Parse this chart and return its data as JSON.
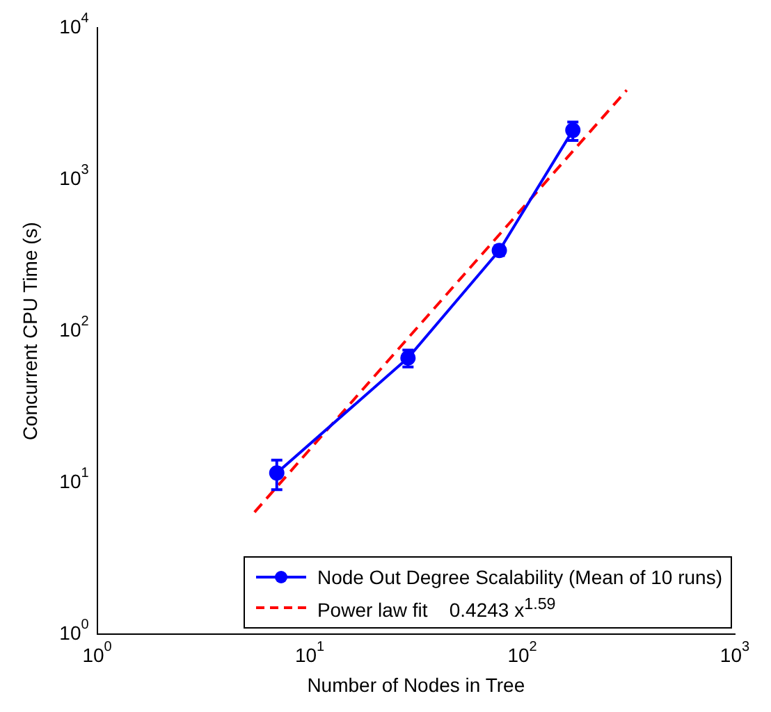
{
  "chart_data": {
    "type": "line",
    "xlabel": "Number of Nodes in Tree",
    "ylabel": "Concurrent CPU Time (s)",
    "log": "xy",
    "xlim": [
      1,
      1000
    ],
    "ylim": [
      1,
      10000
    ],
    "xticks": [
      {
        "value": 1,
        "label": "10$^{0}$"
      },
      {
        "value": 10,
        "label": "10$^{1}$"
      },
      {
        "value": 100,
        "label": "10$^{2}$"
      },
      {
        "value": 1000,
        "label": "10$^{3}$"
      }
    ],
    "yticks": [
      {
        "value": 1,
        "label": "10$^{0}$"
      },
      {
        "value": 10,
        "label": "10$^{1}$"
      },
      {
        "value": 100,
        "label": "10$^{2}$"
      },
      {
        "value": 1000,
        "label": "10$^{3}$"
      },
      {
        "value": 10000,
        "label": "10$^{4}$"
      }
    ],
    "grid": false,
    "legend": "bottom right",
    "series": [
      {
        "name": "Node Out Degree Scalability (Mean of 10 runs)",
        "color": "#0000ff",
        "marker": "circle",
        "line_style": "solid",
        "x": [
          7,
          29,
          78,
          173
        ],
        "values": [
          11.6,
          66.5,
          340,
          2110
        ],
        "errors": [
          [
            9,
            14.1
          ],
          [
            58,
            75
          ],
          [
            315,
            365
          ],
          [
            1810,
            2390
          ]
        ]
      },
      {
        "name": "Power law fit    0.4243 x$^{1.59}$",
        "color": "#ff0000",
        "marker": "none",
        "line_style": "dashed",
        "x": [
          5.5,
          310
        ],
        "values": [
          6.4,
          3880
        ]
      }
    ]
  }
}
